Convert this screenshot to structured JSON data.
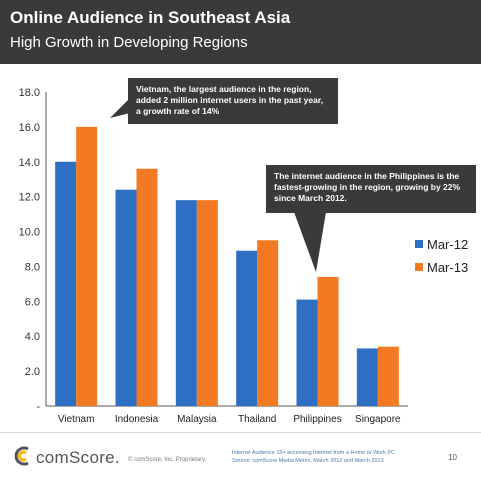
{
  "header": {
    "title": "Online Audience in Southeast Asia",
    "subtitle": "High Growth in Developing Regions"
  },
  "callouts": [
    "Vietnam, the largest audience in the region, added 2 million internet users in the past year, a growth rate of 14%",
    "The internet audience in the Philippines  is the fastest-growing in the region, growing by 22% since March 2012."
  ],
  "footer": {
    "brand": "comScore.",
    "copyright": "© comScore, Inc.    Proprietary.",
    "footnote_line1": "Internet Audience 15+ accessing Internet from a Home or Work PC",
    "footnote_line2": "Source:  comScore Media Metrix, March 2012 and March 2013",
    "page_number": "10"
  },
  "chart_data": {
    "type": "bar",
    "categories": [
      "Vietnam",
      "Indonesia",
      "Malaysia",
      "Thailand",
      "Philippines",
      "Singapore"
    ],
    "series": [
      {
        "name": "Mar-12",
        "color": "#2e6fc4",
        "values": [
          14.0,
          12.4,
          11.8,
          8.9,
          6.1,
          3.3
        ]
      },
      {
        "name": "Mar-13",
        "color": "#f37a22",
        "values": [
          16.0,
          13.6,
          11.8,
          9.5,
          7.4,
          3.4
        ]
      }
    ],
    "ylim": [
      0,
      18
    ],
    "y_ticks": [
      "-",
      "2.0",
      "4.0",
      "6.0",
      "8.0",
      "10.0",
      "12.0",
      "14.0",
      "16.0",
      "18.0"
    ],
    "legend_position": "right",
    "grid": false
  }
}
